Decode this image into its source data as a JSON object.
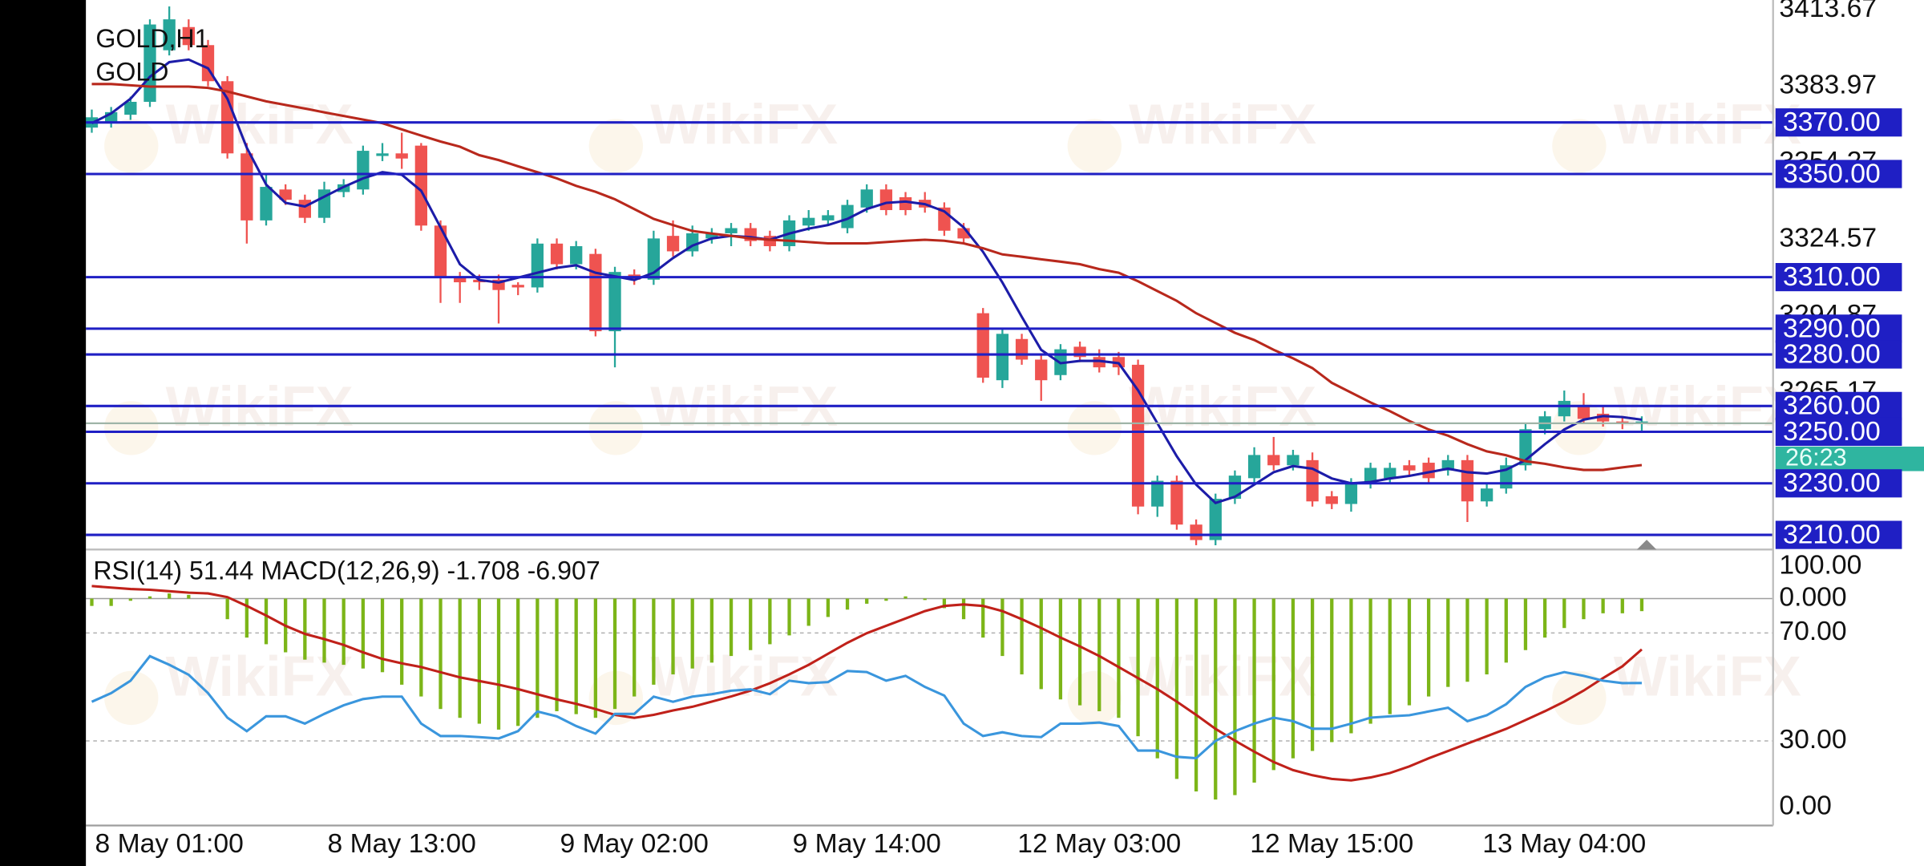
{
  "chart_data": [
    {
      "type": "candlestick",
      "title": "GOLD,H1",
      "subtitle": "GOLD",
      "watermark": "WikiFX",
      "categories": [
        null,
        null,
        null,
        null,
        "8 May 01:00",
        null,
        null,
        null,
        null,
        null,
        null,
        null,
        null,
        null,
        null,
        null,
        "8 May 13:00",
        null,
        null,
        null,
        null,
        null,
        null,
        null,
        null,
        null,
        null,
        null,
        "9 May 02:00",
        null,
        null,
        null,
        null,
        null,
        null,
        null,
        null,
        null,
        null,
        null,
        "9 May 14:00",
        null,
        null,
        null,
        null,
        null,
        null,
        null,
        null,
        null,
        null,
        null,
        "12 May 03:00",
        null,
        null,
        null,
        null,
        null,
        null,
        null,
        null,
        null,
        null,
        null,
        "12 May 15:00",
        null,
        null,
        null,
        null,
        null,
        null,
        null,
        null,
        null,
        null,
        null,
        "13 May 04:00",
        null,
        null,
        null,
        null
      ],
      "open": [
        3368,
        3370,
        3373,
        3378,
        3398,
        3407,
        3400,
        3386,
        3358,
        3332,
        3344,
        3340,
        3333,
        3343,
        3344,
        3357,
        3358,
        3361,
        3330,
        3310,
        3309,
        3309,
        3307,
        3306,
        3323,
        3315,
        3319,
        3289,
        3311,
        3309,
        3326,
        3320,
        3325,
        3327,
        3329,
        3326,
        3322,
        3330,
        3332,
        3329,
        3337,
        3344,
        3341,
        3340,
        3337,
        3329,
        3296,
        3270,
        3286,
        3278,
        3272,
        3283,
        3279,
        3279,
        3276,
        3221,
        3231,
        3214,
        3208,
        3224,
        3232,
        3241,
        3237,
        3239,
        3225,
        3222,
        3230,
        3232,
        3237,
        3238,
        3235,
        3239,
        3223,
        3228,
        3237,
        3251,
        3256,
        3260,
        3257,
        3254,
        3253
      ],
      "high": [
        3375,
        3376,
        3380,
        3410,
        3415,
        3410,
        3402,
        3388,
        3362,
        3350,
        3346,
        3342,
        3347,
        3348,
        3361,
        3362,
        3366,
        3362,
        3332,
        3312,
        3311,
        3311,
        3308,
        3325,
        3325,
        3324,
        3321,
        3314,
        3313,
        3328,
        3332,
        3330,
        3329,
        3331,
        3331,
        3328,
        3334,
        3336,
        3336,
        3340,
        3346,
        3346,
        3343,
        3343,
        3339,
        3331,
        3298,
        3290,
        3288,
        3280,
        3284,
        3285,
        3282,
        3281,
        3278,
        3233,
        3233,
        3216,
        3226,
        3235,
        3244,
        3248,
        3243,
        3242,
        3227,
        3232,
        3238,
        3238,
        3239,
        3240,
        3241,
        3241,
        3230,
        3240,
        3253,
        3258,
        3266,
        3265,
        3260,
        3256,
        3256
      ],
      "low": [
        3366,
        3368,
        3371,
        3376,
        3396,
        3398,
        3384,
        3356,
        3323,
        3330,
        3338,
        3331,
        3331,
        3341,
        3342,
        3355,
        3352,
        3328,
        3300,
        3300,
        3305,
        3292,
        3303,
        3304,
        3313,
        3313,
        3287,
        3275,
        3307,
        3307,
        3318,
        3318,
        3323,
        3322,
        3322,
        3320,
        3320,
        3328,
        3330,
        3327,
        3335,
        3334,
        3334,
        3335,
        3326,
        3323,
        3269,
        3267,
        3276,
        3262,
        3270,
        3277,
        3273,
        3272,
        3218,
        3217,
        3212,
        3206,
        3206,
        3222,
        3230,
        3235,
        3235,
        3221,
        3220,
        3219,
        3228,
        3230,
        3233,
        3230,
        3233,
        3215,
        3221,
        3226,
        3235,
        3249,
        3254,
        3253,
        3252,
        3251,
        3250
      ],
      "close": [
        3372,
        3374,
        3378,
        3408,
        3410,
        3400,
        3386,
        3358,
        3332,
        3345,
        3340,
        3333,
        3344,
        3346,
        3359,
        3358,
        3356,
        3330,
        3310,
        3308,
        3308,
        3305,
        3306,
        3323,
        3315,
        3322,
        3289,
        3312,
        3309,
        3325,
        3320,
        3327,
        3327,
        3329,
        3324,
        3322,
        3332,
        3333,
        3334,
        3338,
        3344,
        3336,
        3336,
        3337,
        3328,
        3325,
        3271,
        3288,
        3278,
        3270,
        3282,
        3279,
        3275,
        3275,
        3221,
        3231,
        3214,
        3208,
        3224,
        3233,
        3241,
        3237,
        3241,
        3223,
        3222,
        3230,
        3236,
        3236,
        3235,
        3232,
        3239,
        3223,
        3228,
        3237,
        3251,
        3256,
        3262,
        3255,
        3254,
        3253,
        3254
      ],
      "up_color": "#26a69a",
      "down_color": "#ef5350",
      "lines": [
        {
          "color": "#1c1ca8",
          "values": [
            3369.7,
            3373.5,
            3379.2,
            3387.7,
            3393.4,
            3394.4,
            3391.0,
            3379.2,
            3360.2,
            3345.9,
            3338.8,
            3337.4,
            3341.2,
            3345.0,
            3348.3,
            3350.7,
            3349.7,
            3343.5,
            3329.3,
            3315.0,
            3308.9,
            3307.9,
            3309.8,
            3311.7,
            3313.6,
            3314.6,
            3311.7,
            3310.3,
            3308.9,
            3311.7,
            3317.4,
            3322.2,
            3325.0,
            3326.0,
            3325.5,
            3324.5,
            3326.9,
            3328.8,
            3330.2,
            3332.6,
            3336.4,
            3338.8,
            3339.3,
            3338.3,
            3335.5,
            3329.3,
            3319.8,
            3307.9,
            3294.6,
            3281.8,
            3276.6,
            3277.5,
            3277.5,
            3276.6,
            3266.1,
            3253.3,
            3240.5,
            3229.5,
            3222.4,
            3224.8,
            3229.5,
            3234.3,
            3236.7,
            3235.7,
            3231.9,
            3230.0,
            3230.5,
            3231.9,
            3232.9,
            3234.3,
            3235.7,
            3234.3,
            3233.8,
            3235.3,
            3239.0,
            3245.2,
            3250.9,
            3254.7,
            3256.1,
            3255.7,
            3254.7
          ]
        },
        {
          "color": "#b8281c",
          "values": [
            3384.9,
            3384.9,
            3384.4,
            3383.9,
            3383.9,
            3383.9,
            3383.4,
            3382.0,
            3380.1,
            3378.2,
            3376.8,
            3375.4,
            3373.9,
            3372.5,
            3371.1,
            3369.7,
            3367.3,
            3364.9,
            3362.6,
            3360.6,
            3357.3,
            3355.4,
            3353.0,
            3350.7,
            3348.3,
            3345.4,
            3343.1,
            3340.2,
            3336.4,
            3332.6,
            3330.2,
            3327.9,
            3326.9,
            3326.0,
            3325.0,
            3324.5,
            3324.1,
            3323.6,
            3323.1,
            3323.1,
            3323.1,
            3323.6,
            3324.1,
            3324.5,
            3324.1,
            3323.1,
            3321.2,
            3318.8,
            3317.9,
            3316.9,
            3316.0,
            3315.0,
            3313.1,
            3311.7,
            3308.4,
            3304.6,
            3300.8,
            3296.0,
            3292.2,
            3288.4,
            3285.6,
            3281.8,
            3278.5,
            3274.7,
            3269.0,
            3265.2,
            3261.4,
            3258.0,
            3254.2,
            3250.9,
            3248.5,
            3245.2,
            3242.4,
            3240.9,
            3238.6,
            3237.6,
            3236.2,
            3235.2,
            3235.2,
            3236.2,
            3237.1
          ]
        }
      ],
      "levels": [
        {
          "value": 3370,
          "label": "3370.00"
        },
        {
          "value": 3350,
          "label": "3350.00"
        },
        {
          "value": 3310,
          "label": "3310.00"
        },
        {
          "value": 3290,
          "label": "3290.00"
        },
        {
          "value": 3280,
          "label": "3280.00"
        },
        {
          "value": 3260,
          "label": "3260.00"
        },
        {
          "value": 3250,
          "label": "3250.00"
        },
        {
          "value": 3230,
          "label": "3230.00"
        },
        {
          "value": 3210,
          "label": "3210.00"
        }
      ],
      "level_color": "#1f1fc4",
      "current_price": 3253.3,
      "current_price_color": "#9fb5a8",
      "countdown": "26:23",
      "countdown_color": "#2fb5a0",
      "ylim": [
        3204.8,
        3417.5
      ],
      "yticks": [
        3413.67,
        3383.97,
        3354.27,
        3324.57,
        3294.87,
        3265.17
      ]
    },
    {
      "type": "indicator",
      "header": {
        "rsi_name": "RSI(14)",
        "rsi": 51.44,
        "macd_name": "MACD(12,26,9)",
        "macd": -1.708,
        "signal": -6.907
      },
      "ylim": [
        0,
        100
      ],
      "yticks": [
        {
          "value": 100,
          "label": "100.00"
        },
        {
          "value": 70,
          "label": "70.00"
        },
        {
          "value": 30,
          "label": "30.00"
        },
        {
          "value": 0,
          "label": "0.00"
        }
      ],
      "y2lim": [
        -30.33,
        6.33
      ],
      "y2ticks": [
        {
          "value": 0,
          "label": "0.000"
        }
      ],
      "series": [
        {
          "type": "bar",
          "axis": "y2",
          "color": "#7cb518",
          "values": [
            -1.0,
            -1.0,
            -0.3,
            0.3,
            0.7,
            0.5,
            0,
            -2.8,
            -5.3,
            -6.2,
            -7.3,
            -8.3,
            -8.7,
            -9.0,
            -9.5,
            -10.0,
            -11.7,
            -13.3,
            -15.0,
            -16.2,
            -17.0,
            -17.8,
            -17.3,
            -16.2,
            -15.3,
            -15.7,
            -16.2,
            -15.0,
            -13.3,
            -11.7,
            -10.3,
            -9.5,
            -8.7,
            -7.8,
            -7.0,
            -6.2,
            -5.0,
            -3.7,
            -2.5,
            -1.5,
            -0.7,
            -0.3,
            0.3,
            -0.2,
            -1.3,
            -2.8,
            -5.3,
            -7.8,
            -10.3,
            -12.3,
            -13.7,
            -14.5,
            -15.3,
            -16.2,
            -18.7,
            -21.7,
            -24.5,
            -26.2,
            -27.3,
            -26.7,
            -25.0,
            -23.3,
            -21.7,
            -20.7,
            -19.5,
            -18.3,
            -17.0,
            -15.7,
            -14.5,
            -13.3,
            -12.0,
            -11.3,
            -10.3,
            -8.7,
            -7.0,
            -5.3,
            -4.0,
            -2.8,
            -2.0,
            -2.0,
            -1.708
          ]
        },
        {
          "type": "line",
          "axis": "y2",
          "color": "#c0211a",
          "values": [
            1.7,
            1.5,
            1.3,
            1.2,
            1.0,
            0.8,
            0.7,
            0.2,
            -1.0,
            -2.3,
            -3.7,
            -4.8,
            -5.5,
            -6.3,
            -7.3,
            -8.2,
            -8.8,
            -9.3,
            -10.0,
            -10.7,
            -11.2,
            -11.7,
            -12.3,
            -13.0,
            -13.7,
            -14.3,
            -15.0,
            -15.8,
            -16.2,
            -15.8,
            -15.2,
            -14.7,
            -14.0,
            -13.3,
            -12.5,
            -11.5,
            -10.3,
            -9.0,
            -7.5,
            -6.0,
            -4.7,
            -3.7,
            -2.7,
            -1.7,
            -1.0,
            -0.8,
            -1.0,
            -1.7,
            -2.8,
            -4.0,
            -5.3,
            -6.5,
            -7.8,
            -9.3,
            -10.8,
            -12.3,
            -14.0,
            -15.8,
            -17.7,
            -19.3,
            -20.8,
            -22.2,
            -23.3,
            -24.0,
            -24.5,
            -24.7,
            -24.3,
            -23.7,
            -22.8,
            -21.7,
            -20.7,
            -19.7,
            -18.7,
            -17.7,
            -16.5,
            -15.3,
            -14.0,
            -12.5,
            -10.8,
            -9.2,
            -6.907
          ]
        },
        {
          "type": "line",
          "color": "#3a96dd",
          "values": [
            44.5,
            47.7,
            52.3,
            61.4,
            58.2,
            54.5,
            47.7,
            38.6,
            33.6,
            39.1,
            39.1,
            36.4,
            40.0,
            43.2,
            45.5,
            46.4,
            46.4,
            36.4,
            31.8,
            31.8,
            31.4,
            30.9,
            33.6,
            40.9,
            39.1,
            35.5,
            32.7,
            40.0,
            40.0,
            46.4,
            44.5,
            46.4,
            47.3,
            48.6,
            49.1,
            47.3,
            52.3,
            51.4,
            51.8,
            55.9,
            55.5,
            52.3,
            54.1,
            50.0,
            46.8,
            36.4,
            31.8,
            33.2,
            31.8,
            31.4,
            36.4,
            36.4,
            36.8,
            35.5,
            26.4,
            26.4,
            24.1,
            23.6,
            30.0,
            33.6,
            36.4,
            38.6,
            37.3,
            34.5,
            34.5,
            36.4,
            38.6,
            39.1,
            39.5,
            40.9,
            42.3,
            37.3,
            39.5,
            43.6,
            50.0,
            53.6,
            55.5,
            54.1,
            52.3,
            51.4,
            51.44
          ]
        }
      ]
    }
  ]
}
